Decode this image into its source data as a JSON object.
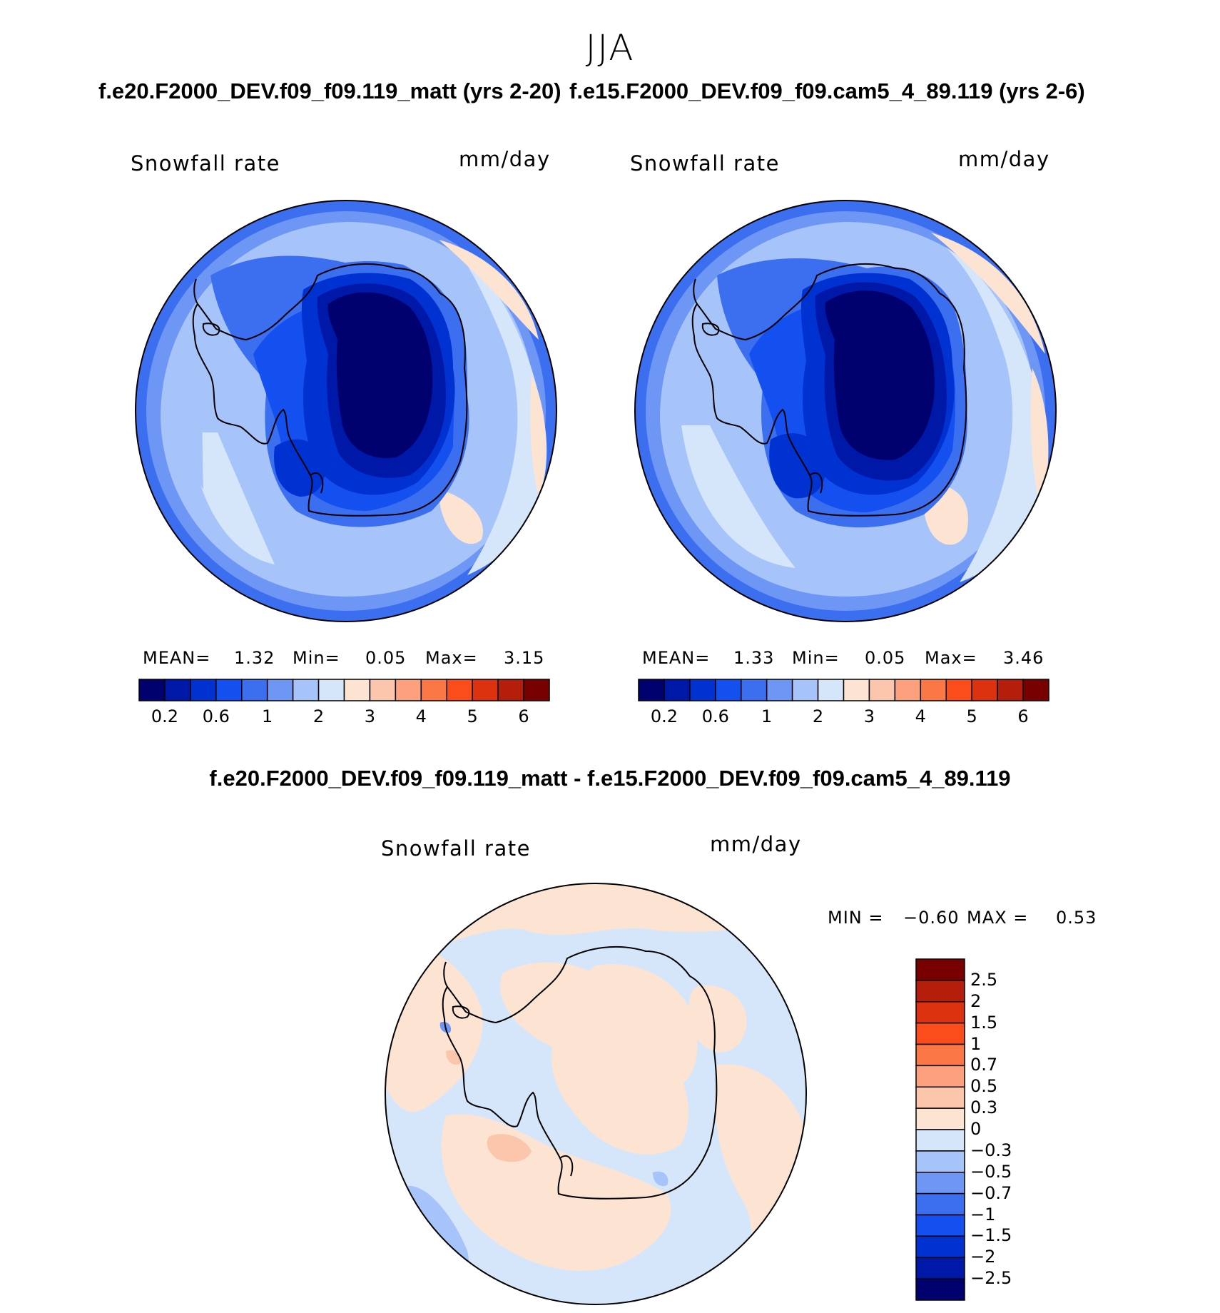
{
  "figure": {
    "season_title": "JJA",
    "panel_left": {
      "case_title": "f.e20.F2000_DEV.f09_f09.119_matt (yrs 2-20)",
      "variable": "Snowfall rate",
      "units": "mm/day",
      "stats": {
        "mean_label": "MEAN=",
        "mean": "1.32",
        "min_label": "Min=",
        "min": "0.05",
        "max_label": "Max=",
        "max": "3.15"
      }
    },
    "panel_right": {
      "case_title": "f.e15.F2000_DEV.f09_f09.cam5_4_89.119 (yrs 2-6)",
      "variable": "Snowfall rate",
      "units": "mm/day",
      "stats": {
        "mean_label": "MEAN=",
        "mean": "1.33",
        "min_label": "Min=",
        "min": "0.05",
        "max_label": "Max=",
        "max": "3.46"
      }
    },
    "panel_diff": {
      "case_title": "f.e20.F2000_DEV.f09_f09.119_matt - f.e15.F2000_DEV.f09_f09.cam5_4_89.119",
      "variable": "Snowfall rate",
      "units": "mm/day",
      "stats": {
        "min_label": "MIN =",
        "min": "−0.60",
        "max_label": "MAX =",
        "max": "0.53"
      }
    },
    "colorbar_abs": {
      "colors": [
        "#00006e",
        "#0018a8",
        "#0032d2",
        "#1450f0",
        "#3c6ef0",
        "#6e96f5",
        "#a6c3fa",
        "#d5e6fb",
        "#fde4d2",
        "#fcc6ad",
        "#fca07e",
        "#fb7846",
        "#fb4c1c",
        "#dc3210",
        "#b41e0a",
        "#780000"
      ],
      "tick_labels": [
        "0.2",
        "0.6",
        "1",
        "2",
        "3",
        "4",
        "5",
        "6"
      ]
    },
    "colorbar_diff": {
      "colors": [
        "#00006e",
        "#0018a8",
        "#0032d2",
        "#1450f0",
        "#3c6ef0",
        "#6e96f5",
        "#a6c3fa",
        "#d5e6fb",
        "#fde4d2",
        "#fcc6ad",
        "#fca07e",
        "#fb7846",
        "#fb4c1c",
        "#dc3210",
        "#b41e0a",
        "#780000"
      ],
      "tick_labels": [
        "2.5",
        "2",
        "1.5",
        "1",
        "0.7",
        "0.5",
        "0.3",
        "0",
        "−0.3",
        "−0.5",
        "−0.7",
        "−1",
        "−1.5",
        "−2",
        "−2.5"
      ]
    }
  }
}
